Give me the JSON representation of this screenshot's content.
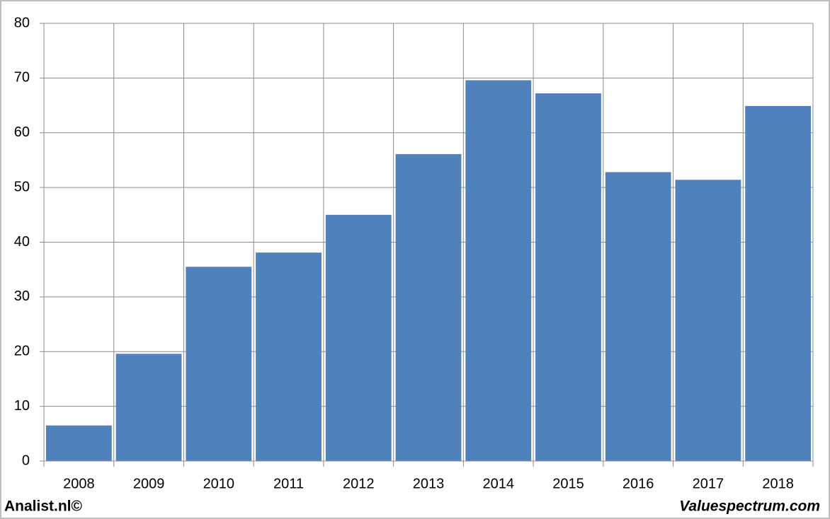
{
  "chart_data": {
    "type": "bar",
    "categories": [
      "2008",
      "2009",
      "2010",
      "2011",
      "2012",
      "2013",
      "2014",
      "2015",
      "2016",
      "2017",
      "2018"
    ],
    "values": [
      6.5,
      19.6,
      35.5,
      38.1,
      45.0,
      56.1,
      69.6,
      67.2,
      52.8,
      51.4,
      64.9
    ],
    "color": "#4f81bd",
    "ylim": [
      0,
      80
    ],
    "yticks": [
      0,
      10,
      20,
      30,
      40,
      50,
      60,
      70,
      80
    ],
    "grid": true,
    "credit": "Analist.nl©",
    "source": "Valuespectrum.com"
  }
}
